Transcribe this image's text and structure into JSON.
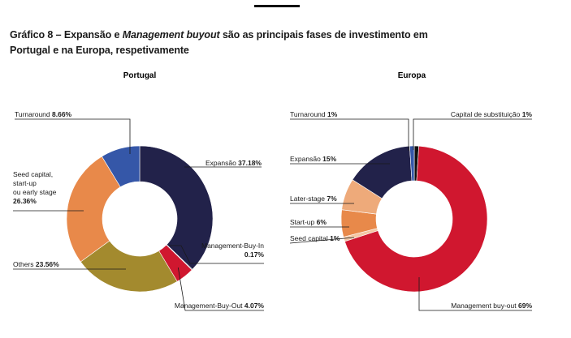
{
  "title": {
    "prefix": "Gráfico 8 – Expansão e ",
    "emphasis": "Management buyout",
    "suffix": " são as principais fases de investimento em",
    "line2": "Portugal e na Europa, respetivamente"
  },
  "chart_data": [
    {
      "type": "pie",
      "title": "Portugal",
      "slices": [
        {
          "label": "Expansão",
          "value": 37.18,
          "value_text": "37.18%",
          "color": "#22224a"
        },
        {
          "label": "Management-Buy-In",
          "value": 0.17,
          "value_text": "0.17%",
          "color": "#3a3a3a"
        },
        {
          "label": "Management-Buy-Out",
          "value": 4.07,
          "value_text": "4.07%",
          "color": "#d0172f"
        },
        {
          "label": "Others",
          "value": 23.56,
          "value_text": "23.56%",
          "color": "#a38a2e"
        },
        {
          "label": "Seed capital, start-up ou early stage",
          "label_lines": [
            "Seed capital,",
            "start-up",
            "ou early stage"
          ],
          "value": 26.36,
          "value_text": "26.36%",
          "color": "#e8894a"
        },
        {
          "label": "Turnaround",
          "value": 8.66,
          "value_text": "8.66%",
          "color": "#3557a8"
        }
      ]
    },
    {
      "type": "pie",
      "title": "Europa",
      "slices": [
        {
          "label": "Capital de substituição",
          "value": 1,
          "value_text": "1%",
          "color": "#111111"
        },
        {
          "label": "Management buy-out",
          "value": 69,
          "value_text": "69%",
          "color": "#d0172f"
        },
        {
          "label": "Seed capital",
          "value": 1,
          "value_text": "1%",
          "color": "#f3c7a4"
        },
        {
          "label": "Start-up",
          "value": 6,
          "value_text": "6%",
          "color": "#e8894a"
        },
        {
          "label": "Later-stage",
          "value": 7,
          "value_text": "7%",
          "color": "#eeaa7a"
        },
        {
          "label": "Expansão",
          "value": 15,
          "value_text": "15%",
          "color": "#22224a"
        },
        {
          "label": "Turnaround",
          "value": 1,
          "value_text": "1%",
          "color": "#3557a8"
        }
      ]
    }
  ]
}
